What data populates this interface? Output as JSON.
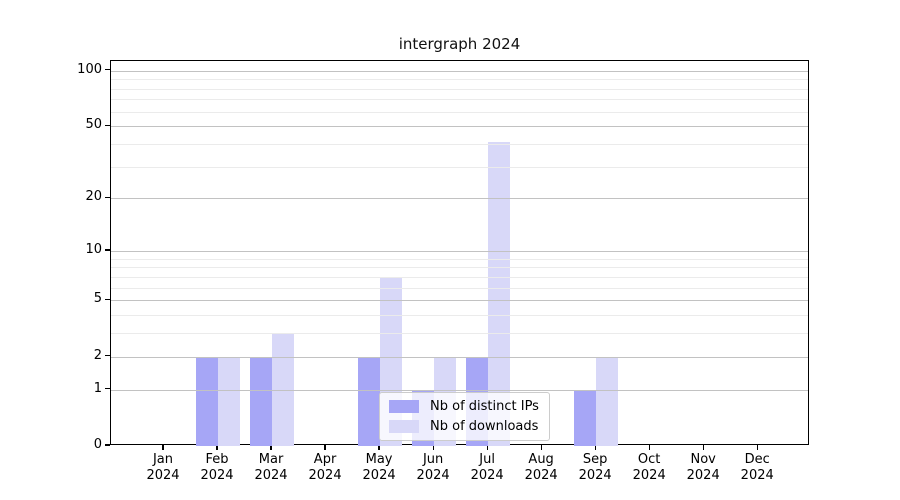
{
  "chart_data": {
    "type": "bar",
    "title": "intergraph 2024",
    "categories": [
      {
        "month": "Jan",
        "year": "2024"
      },
      {
        "month": "Feb",
        "year": "2024"
      },
      {
        "month": "Mar",
        "year": "2024"
      },
      {
        "month": "Apr",
        "year": "2024"
      },
      {
        "month": "May",
        "year": "2024"
      },
      {
        "month": "Jun",
        "year": "2024"
      },
      {
        "month": "Jul",
        "year": "2024"
      },
      {
        "month": "Aug",
        "year": "2024"
      },
      {
        "month": "Sep",
        "year": "2024"
      },
      {
        "month": "Oct",
        "year": "2024"
      },
      {
        "month": "Nov",
        "year": "2024"
      },
      {
        "month": "Dec",
        "year": "2024"
      }
    ],
    "series": [
      {
        "name": "Nb of distinct IPs",
        "slug": "distinct-ips",
        "color": "#a6a6f6",
        "values": [
          0,
          2,
          2,
          0,
          2,
          1,
          2,
          0,
          1,
          0,
          0,
          0
        ]
      },
      {
        "name": "Nb of downloads",
        "slug": "downloads",
        "color": "#d8d8f8",
        "values": [
          0,
          2,
          3,
          0,
          7,
          2,
          41,
          0,
          2,
          0,
          0,
          0
        ]
      }
    ],
    "y_axis": {
      "scale": "log1p",
      "major_ticks": [
        0,
        1,
        2,
        5,
        10,
        20,
        50,
        100
      ],
      "minor_ticks": [
        3,
        4,
        6,
        7,
        8,
        9,
        30,
        40,
        60,
        70,
        80,
        90
      ],
      "ylim": [
        0,
        113
      ]
    },
    "legend": {
      "position": "lower center"
    },
    "grid": {
      "shown": true,
      "major_color": "#c2c2c2",
      "minor_color": "#ebebeb"
    },
    "colors": {
      "spine": "#000000",
      "text": "#000000"
    }
  }
}
